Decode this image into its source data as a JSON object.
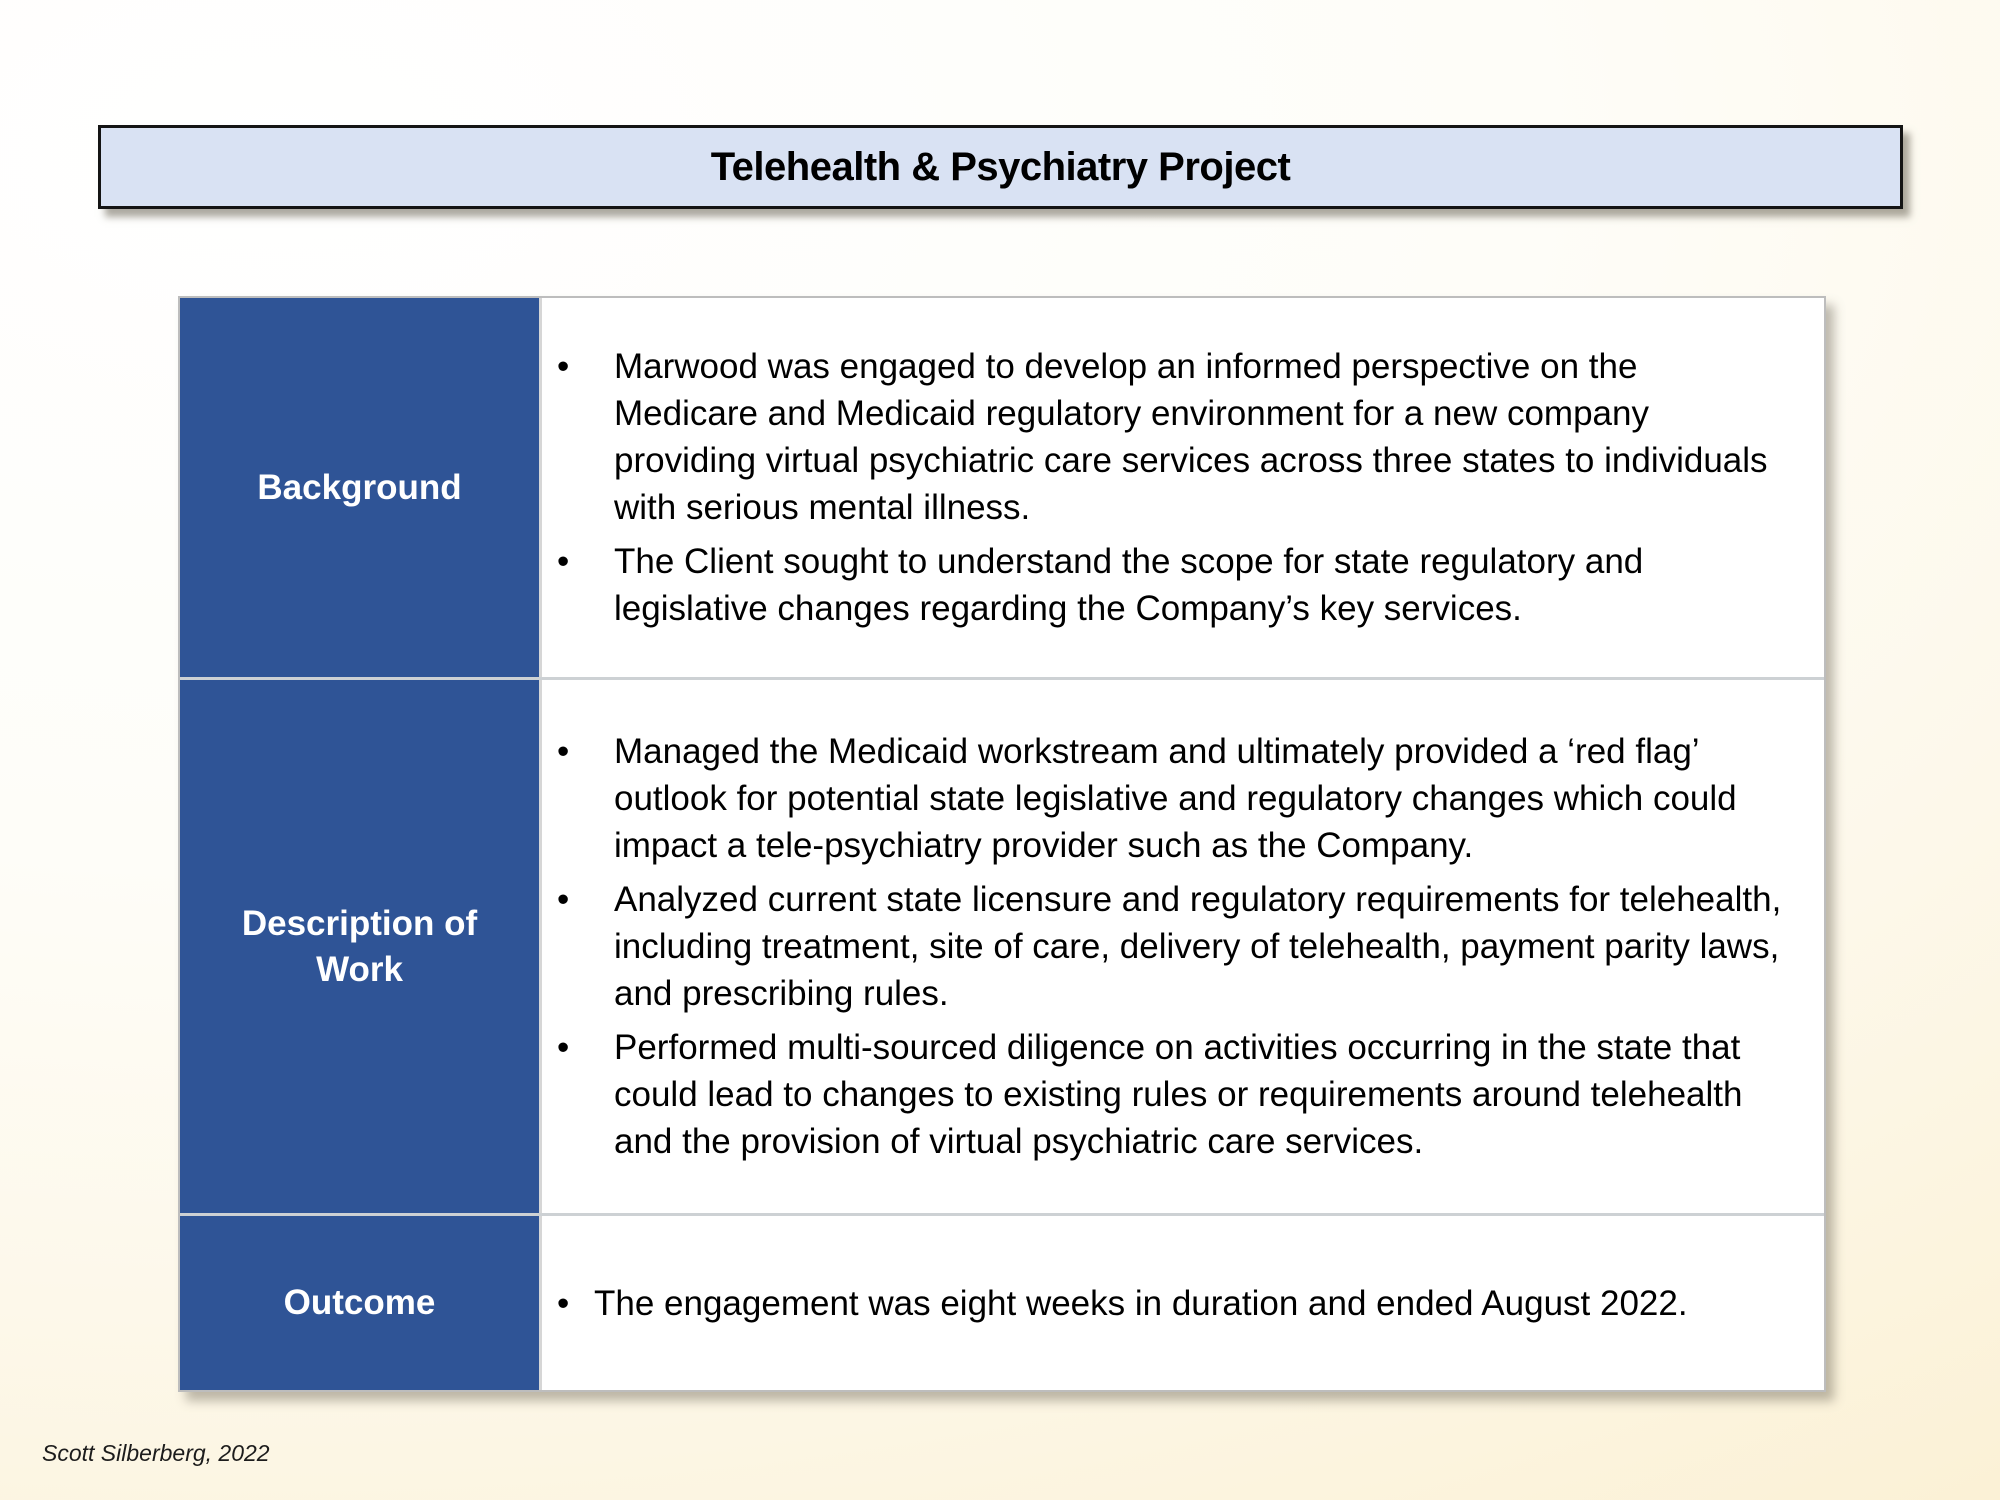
{
  "slide": {
    "title": "Telehealth & Psychiatry Project",
    "footer_credit": "Scott Silberberg, 2022",
    "bullet_char": "•",
    "colors": {
      "row_label_blue": "#2F5496",
      "title_bar_fill": "#D9E2F3",
      "title_bar_border": "#141414",
      "table_border_gray": "#BDBDBD",
      "background_cream": "#FAEECD",
      "body_text": "#000000",
      "label_text": "#FFFFFF"
    },
    "rows": [
      {
        "label": "Background",
        "bullets": [
          "Marwood was engaged to develop an informed perspective on the Medicare and Medicaid regulatory environment for a new company providing virtual psychiatric care services across three states to individuals with serious mental illness.",
          "The Client sought to understand the scope for state regulatory and legislative changes regarding the Company’s key services."
        ]
      },
      {
        "label": "Description of Work",
        "bullets": [
          "Managed the Medicaid workstream and ultimately provided a ‘red flag’ outlook for potential state legislative and regulatory changes which could impact a tele-psychiatry provider such as the Company.",
          "Analyzed current state licensure and regulatory requirements for telehealth, including treatment, site of care, delivery of telehealth, payment parity laws, and prescribing rules.",
          "Performed multi-sourced diligence on activities occurring in the state that could lead to changes to existing rules or requirements around telehealth and the provision of virtual psychiatric care services."
        ]
      },
      {
        "label": "Outcome",
        "bullets": [
          "The engagement was eight weeks in duration and ended August 2022."
        ]
      }
    ]
  }
}
